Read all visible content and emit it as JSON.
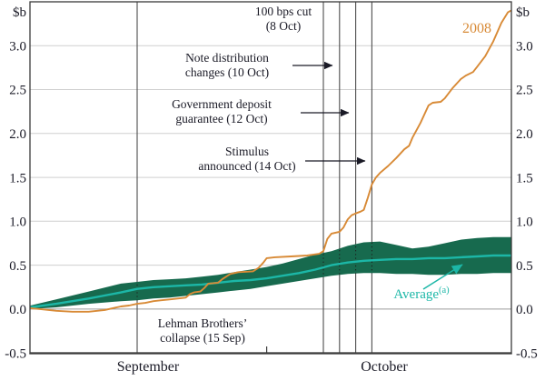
{
  "chart_data": {
    "type": "line",
    "y_axis": {
      "unit": "$b",
      "ticks": [
        "3.0",
        "2.5",
        "2.0",
        "1.5",
        "1.0",
        "0.5",
        "0.0",
        "-0.5"
      ],
      "tick_values": [
        3.0,
        2.5,
        2.0,
        1.5,
        1.0,
        0.5,
        0.0,
        -0.5
      ],
      "min": -0.5,
      "max": 3.5
    },
    "x_axis": {
      "labels": [
        "September",
        "October"
      ],
      "month_boundary_day": 30
    },
    "series": [
      {
        "name": "2008",
        "color": "#d88a36",
        "points": [
          [
            0.8,
            0.01
          ],
          [
            2,
            0.0
          ],
          [
            4,
            -0.02
          ],
          [
            6,
            -0.03
          ],
          [
            8,
            -0.03
          ],
          [
            10,
            -0.01
          ],
          [
            11,
            0.01
          ],
          [
            12,
            0.03
          ],
          [
            13,
            0.04
          ],
          [
            14,
            0.06
          ],
          [
            15,
            0.07
          ],
          [
            16,
            0.09
          ],
          [
            17,
            0.1
          ],
          [
            18,
            0.11
          ],
          [
            19,
            0.12
          ],
          [
            20,
            0.13
          ],
          [
            20.5,
            0.17
          ],
          [
            21,
            0.19
          ],
          [
            21.8,
            0.2
          ],
          [
            22.3,
            0.24
          ],
          [
            22.8,
            0.29
          ],
          [
            24,
            0.3
          ],
          [
            24.5,
            0.34
          ],
          [
            25.5,
            0.4
          ],
          [
            26,
            0.41
          ],
          [
            26.5,
            0.42
          ],
          [
            28.3,
            0.43
          ],
          [
            29,
            0.47
          ],
          [
            29.6,
            0.53
          ],
          [
            30,
            0.58
          ],
          [
            31,
            0.59
          ],
          [
            33,
            0.6
          ],
          [
            35,
            0.61
          ],
          [
            36.5,
            0.63
          ],
          [
            37,
            0.66
          ],
          [
            37.5,
            0.8
          ],
          [
            38,
            0.86
          ],
          [
            39,
            0.88
          ],
          [
            39.5,
            0.93
          ],
          [
            40,
            1.02
          ],
          [
            40.5,
            1.07
          ],
          [
            41,
            1.09
          ],
          [
            41.6,
            1.11
          ],
          [
            42,
            1.13
          ],
          [
            42.5,
            1.27
          ],
          [
            43,
            1.42
          ],
          [
            43.5,
            1.5
          ],
          [
            44,
            1.55
          ],
          [
            45,
            1.63
          ],
          [
            46,
            1.72
          ],
          [
            47,
            1.82
          ],
          [
            47.6,
            1.86
          ],
          [
            48,
            1.95
          ],
          [
            49,
            2.12
          ],
          [
            50,
            2.32
          ],
          [
            50.5,
            2.35
          ],
          [
            51.5,
            2.36
          ],
          [
            52,
            2.4
          ],
          [
            53,
            2.52
          ],
          [
            54,
            2.62
          ],
          [
            54.6,
            2.66
          ],
          [
            55.5,
            2.7
          ],
          [
            56,
            2.76
          ],
          [
            57,
            2.88
          ],
          [
            58,
            3.05
          ],
          [
            59,
            3.26
          ],
          [
            59.8,
            3.38
          ],
          [
            60.2,
            3.4
          ]
        ]
      },
      {
        "name": "Average",
        "footnote": "(a)",
        "color": "#1cb7a7",
        "band_color": "#176a4e",
        "points": [
          [
            0.8,
            0.02
          ],
          [
            4,
            0.06
          ],
          [
            8,
            0.12
          ],
          [
            12,
            0.19
          ],
          [
            14,
            0.23
          ],
          [
            16,
            0.25
          ],
          [
            18,
            0.26
          ],
          [
            20,
            0.27
          ],
          [
            22,
            0.28
          ],
          [
            24,
            0.3
          ],
          [
            26,
            0.32
          ],
          [
            28,
            0.33
          ],
          [
            30,
            0.35
          ],
          [
            32,
            0.38
          ],
          [
            34,
            0.41
          ],
          [
            36,
            0.45
          ],
          [
            38,
            0.5
          ],
          [
            40,
            0.53
          ],
          [
            42,
            0.55
          ],
          [
            44,
            0.56
          ],
          [
            46,
            0.57
          ],
          [
            48,
            0.57
          ],
          [
            50,
            0.58
          ],
          [
            52,
            0.58
          ],
          [
            54,
            0.59
          ],
          [
            56,
            0.6
          ],
          [
            58,
            0.61
          ],
          [
            60.2,
            0.61
          ]
        ],
        "band_upper": [
          [
            0.8,
            0.04
          ],
          [
            4,
            0.11
          ],
          [
            8,
            0.2
          ],
          [
            12,
            0.29
          ],
          [
            14,
            0.31
          ],
          [
            16,
            0.33
          ],
          [
            18,
            0.34
          ],
          [
            20,
            0.35
          ],
          [
            22,
            0.37
          ],
          [
            24,
            0.39
          ],
          [
            26,
            0.42
          ],
          [
            28,
            0.45
          ],
          [
            30,
            0.48
          ],
          [
            32,
            0.52
          ],
          [
            34,
            0.57
          ],
          [
            36,
            0.62
          ],
          [
            38,
            0.66
          ],
          [
            40,
            0.72
          ],
          [
            42,
            0.76
          ],
          [
            44,
            0.77
          ],
          [
            46,
            0.73
          ],
          [
            48,
            0.69
          ],
          [
            50,
            0.71
          ],
          [
            52,
            0.75
          ],
          [
            54,
            0.79
          ],
          [
            56,
            0.81
          ],
          [
            58,
            0.82
          ],
          [
            60.2,
            0.82
          ]
        ],
        "band_lower": [
          [
            0.8,
            0.0
          ],
          [
            4,
            0.02
          ],
          [
            8,
            0.06
          ],
          [
            12,
            0.09
          ],
          [
            14,
            0.1
          ],
          [
            16,
            0.12
          ],
          [
            18,
            0.13
          ],
          [
            20,
            0.15
          ],
          [
            22,
            0.17
          ],
          [
            24,
            0.19
          ],
          [
            26,
            0.21
          ],
          [
            28,
            0.23
          ],
          [
            30,
            0.26
          ],
          [
            32,
            0.29
          ],
          [
            34,
            0.32
          ],
          [
            36,
            0.35
          ],
          [
            38,
            0.38
          ],
          [
            40,
            0.4
          ],
          [
            42,
            0.41
          ],
          [
            44,
            0.41
          ],
          [
            46,
            0.4
          ],
          [
            48,
            0.4
          ],
          [
            50,
            0.39
          ],
          [
            52,
            0.39
          ],
          [
            54,
            0.4
          ],
          [
            56,
            0.4
          ],
          [
            58,
            0.41
          ],
          [
            60.2,
            0.41
          ]
        ]
      }
    ],
    "events": [
      {
        "id": "lehman-collapse",
        "day": 14,
        "date": "15 Sep",
        "label": "Lehman Brothers’\ncollapse (15 Sep)"
      },
      {
        "id": "rate-cut",
        "day": 37,
        "date": "8 Oct",
        "label": "100 bps cut\n(8 Oct)"
      },
      {
        "id": "note-distribution",
        "day": 39,
        "date": "10 Oct",
        "label": "Note distribution\nchanges (10 Oct)"
      },
      {
        "id": "deposit-guarantee",
        "day": 41,
        "date": "12 Oct",
        "label": "Government deposit\nguarantee (12 Oct)"
      },
      {
        "id": "stimulus",
        "day": 43,
        "date": "14 Oct",
        "label": "Stimulus\nannounced (14 Oct)"
      }
    ],
    "colors": {
      "frame": "#3a3a3a",
      "gridline": "#cfcfcf",
      "zero_line": "#9a9a9a",
      "event_line": "#4d4d4d",
      "text": "#1a1a26"
    }
  }
}
